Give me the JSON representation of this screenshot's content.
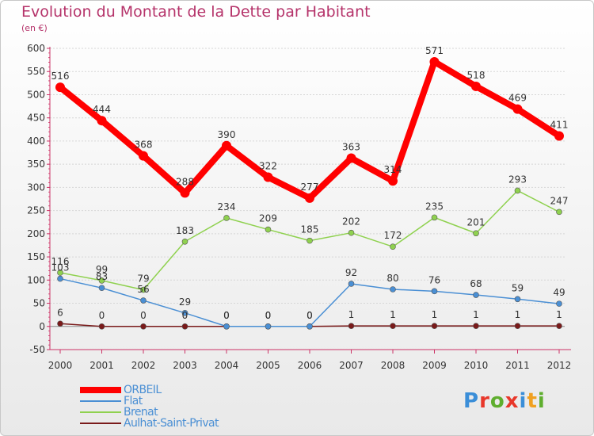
{
  "header": {
    "title": "Evolution du Montant de la Dette par Habitant",
    "subtitle": "(en €)"
  },
  "colors": {
    "title": "#b5336a",
    "axis": "#333333",
    "grid": "#d6d6d6",
    "zero_line": "#888888"
  },
  "logo": {
    "text": "Proxiti",
    "letter_colors": [
      "#3b8ed8",
      "#e8372a",
      "#5fae2e",
      "#e8372a",
      "#3b8ed8",
      "#f0a020",
      "#5fae2e"
    ]
  },
  "chart_data": {
    "type": "line",
    "title": "Evolution du Montant de la Dette par Habitant",
    "subtitle": "(en €)",
    "xlabel": "",
    "ylabel": "",
    "x": [
      "2000",
      "2001",
      "2002",
      "2003",
      "2004",
      "2005",
      "2006",
      "2007",
      "2008",
      "2009",
      "2010",
      "2011",
      "2012"
    ],
    "ylim": [
      -50,
      600
    ],
    "yticks": [
      -50,
      0,
      50,
      100,
      150,
      200,
      250,
      300,
      350,
      400,
      450,
      500,
      550,
      600
    ],
    "grid": "horizontal",
    "legend_position": "bottom-left",
    "series": [
      {
        "name": "ORBEIL",
        "color": "#ff0000",
        "width": 8,
        "marker": 6,
        "values": [
          516,
          444,
          368,
          288,
          390,
          322,
          277,
          363,
          314,
          571,
          518,
          469,
          411
        ],
        "labels": [
          "516",
          "444",
          "368",
          "288",
          "390",
          "322",
          "277",
          "363",
          "314",
          "571",
          "518",
          "469",
          "411"
        ]
      },
      {
        "name": "Flat",
        "color": "#4a8fd4",
        "width": 1.5,
        "marker": 3.5,
        "values": [
          103,
          83,
          56,
          29,
          0,
          0,
          0,
          92,
          80,
          76,
          68,
          59,
          49
        ],
        "labels": [
          "103",
          "83",
          "56",
          "29",
          "0",
          "0",
          "0",
          "92",
          "80",
          "76",
          "68",
          "59",
          "49"
        ]
      },
      {
        "name": "Brenat",
        "color": "#8fd14f",
        "width": 1.5,
        "marker": 3.5,
        "values": [
          116,
          99,
          79,
          183,
          234,
          209,
          185,
          202,
          172,
          235,
          201,
          293,
          247
        ],
        "labels": [
          "116",
          "99",
          "79",
          "183",
          "234",
          "209",
          "185",
          "202",
          "172",
          "235",
          "201",
          "293",
          "247"
        ]
      },
      {
        "name": "Aulhat-Saint-Privat",
        "color": "#7a1a1a",
        "width": 1.5,
        "marker": 3.5,
        "values": [
          6,
          0,
          0,
          0,
          0,
          0,
          0,
          1,
          1,
          1,
          1,
          1,
          1
        ],
        "labels": [
          "6",
          "0",
          "0",
          "0",
          "0",
          "0",
          "0",
          "1",
          "1",
          "1",
          "1",
          "1",
          "1"
        ]
      }
    ]
  }
}
